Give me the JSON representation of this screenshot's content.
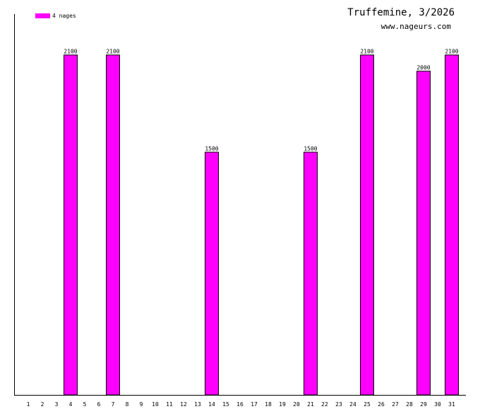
{
  "chart_data": {
    "type": "bar",
    "title": "Truffemine, 3/2026",
    "subtitle": "www.nageurs.com",
    "legend": {
      "label": "4 nages",
      "color": "#ff00ff",
      "placement": "top-left"
    },
    "categories": [
      "1",
      "2",
      "3",
      "4",
      "5",
      "6",
      "7",
      "8",
      "9",
      "10",
      "11",
      "12",
      "13",
      "14",
      "15",
      "16",
      "17",
      "18",
      "19",
      "20",
      "21",
      "22",
      "23",
      "24",
      "25",
      "26",
      "27",
      "28",
      "29",
      "30",
      "31"
    ],
    "series": [
      {
        "name": "4 nages",
        "color": "#ff00ff",
        "values": [
          0,
          0,
          0,
          2100,
          0,
          0,
          2100,
          0,
          0,
          0,
          0,
          0,
          0,
          1500,
          0,
          0,
          0,
          0,
          0,
          0,
          1500,
          0,
          0,
          0,
          2100,
          0,
          0,
          0,
          2000,
          0,
          2100
        ]
      }
    ],
    "ylim": [
      0,
      2350
    ],
    "grid": false
  }
}
